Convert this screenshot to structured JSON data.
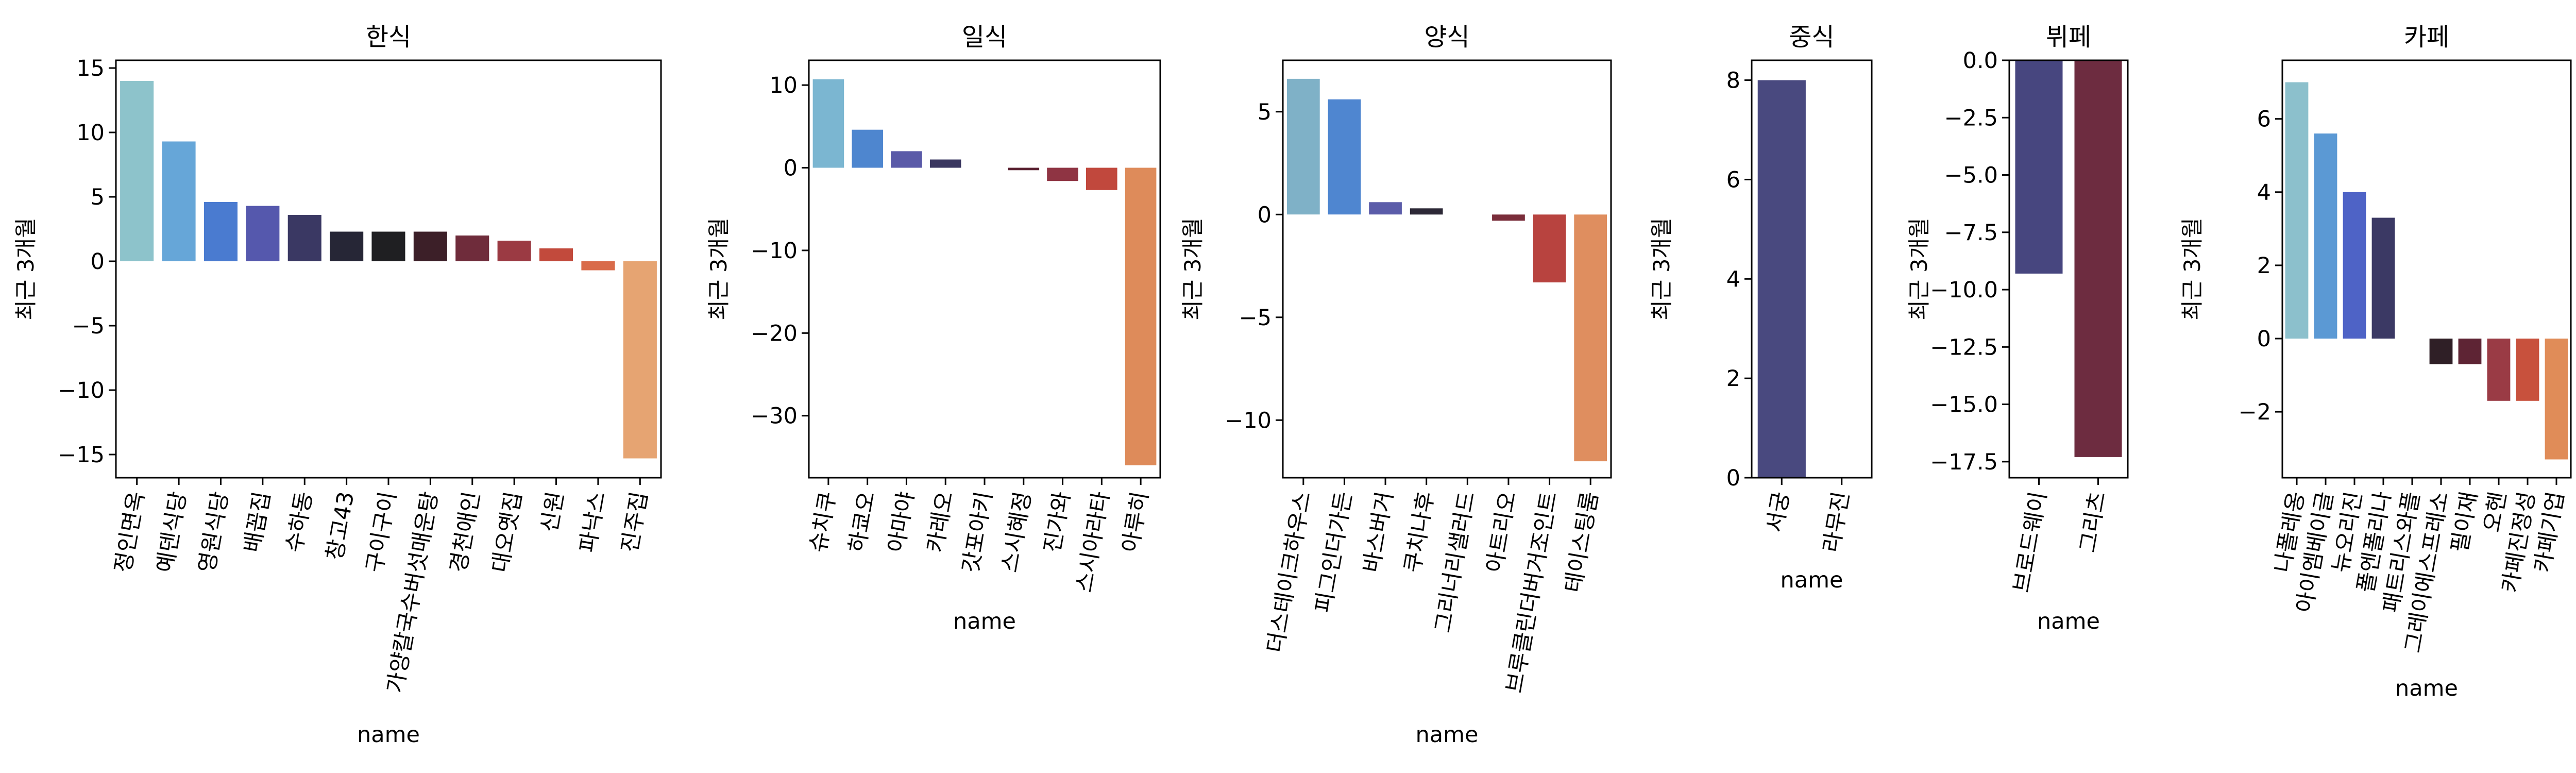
{
  "charts": [
    {
      "type": "bar",
      "title": "한식",
      "xlabel": "name",
      "ylabel": "최근 3개월",
      "ylim": [
        -16.8,
        15.6
      ],
      "yticks": [
        -15,
        -10,
        -5,
        0,
        5,
        10,
        15
      ],
      "categories": [
        "정인면옥",
        "예덴식당",
        "영원식당",
        "배꼽집",
        "수하동",
        "창고43",
        "구이구이",
        "가양칼국수버섯매운탕",
        "경천애인",
        "대오옛집",
        "신원",
        "파낙스",
        "진주집"
      ],
      "values": [
        14.0,
        9.3,
        4.6,
        4.3,
        3.6,
        2.3,
        2.3,
        2.3,
        2.0,
        1.6,
        1.0,
        -0.7,
        -15.3
      ],
      "colors": [
        "#8dc3cb",
        "#66a6d8",
        "#4a7bd0",
        "#5558ad",
        "#3a3863",
        "#262636",
        "#1f1f22",
        "#3c1f28",
        "#6f2c3b",
        "#9b3a43",
        "#c24a3c",
        "#d96b4a",
        "#e6a472"
      ]
    },
    {
      "type": "bar",
      "title": "일식",
      "xlabel": "name",
      "ylabel": "최근 3개월",
      "ylim": [
        -37.5,
        13.0
      ],
      "yticks": [
        -30,
        -20,
        -10,
        0,
        10
      ],
      "categories": [
        "슈치쿠",
        "하쿄오",
        "아마야",
        "카레오",
        "갓포아키",
        "스시혜정",
        "진가와",
        "스시아라타",
        "아루히"
      ],
      "values": [
        10.7,
        4.6,
        2.0,
        1.0,
        0.0,
        -0.3,
        -1.6,
        -2.7,
        -36.0
      ],
      "colors": [
        "#7bb6d1",
        "#4e86cf",
        "#5a5aa8",
        "#3a3760",
        "#241f2c",
        "#5a2232",
        "#8f3443",
        "#c1483d",
        "#de8b5a"
      ]
    },
    {
      "type": "bar",
      "title": "양식",
      "xlabel": "name",
      "ylabel": "최근 3개월",
      "ylim": [
        -12.8,
        7.5
      ],
      "yticks": [
        -10,
        -5,
        0,
        5
      ],
      "categories": [
        "더스테이크하우스",
        "피그인더가든",
        "바스버거",
        "쿠치나후",
        "그리너리샐러드",
        "아트리오",
        "브루클린더버거조인트",
        "테이스팅룸"
      ],
      "values": [
        6.6,
        5.6,
        0.6,
        0.3,
        0.0,
        -0.3,
        -3.3,
        -12.0
      ],
      "colors": [
        "#7fb1c7",
        "#4f86d0",
        "#5b5ca9",
        "#2c2836",
        "#36202a",
        "#7a2d3a",
        "#b8433f",
        "#df8e5f"
      ]
    },
    {
      "type": "bar",
      "title": "중식",
      "xlabel": "name",
      "ylabel": "최근 3개월",
      "ylim": [
        0,
        8.4
      ],
      "yticks": [
        0,
        2,
        4,
        6,
        8
      ],
      "categories": [
        "서궁",
        "라무진"
      ],
      "values": [
        8.0,
        0.0
      ],
      "colors": [
        "#49497f",
        "#6d2c40"
      ]
    },
    {
      "type": "bar",
      "title": "뷔페",
      "xlabel": "name",
      "ylabel": "최근 3개월",
      "ylim": [
        -18.2,
        0
      ],
      "yticks": [
        -17.5,
        -15.0,
        -12.5,
        -10.0,
        -7.5,
        -5.0,
        -2.5,
        0.0
      ],
      "ytick_labels": [
        "−17.5",
        "−15.0",
        "−12.5",
        "−10.0",
        "−7.5",
        "−5.0",
        "−2.5",
        "0.0"
      ],
      "categories": [
        "브로드웨이",
        "그리츠"
      ],
      "values": [
        -9.3,
        -17.3
      ],
      "colors": [
        "#47467f",
        "#6d2c40"
      ]
    },
    {
      "type": "bar",
      "title": "카페",
      "xlabel": "name",
      "ylabel": "최근 3개월",
      "ylim": [
        -3.8,
        7.6
      ],
      "yticks": [
        -2,
        0,
        2,
        4,
        6
      ],
      "categories": [
        "나폴레옹",
        "아이엠베이글",
        "뉴오리진",
        "폴엔폴리나",
        "패트리스와플",
        "그레이에스프레소",
        "필이재",
        "오헨",
        "카페진정성",
        "카페기업"
      ],
      "values": [
        7.0,
        5.6,
        4.0,
        3.3,
        0.0,
        -0.7,
        -0.7,
        -1.7,
        -1.7,
        -3.3
      ],
      "colors": [
        "#8cc0cc",
        "#5b99d4",
        "#4e63c6",
        "#3b3964",
        "#2a2a30",
        "#2f1f26",
        "#5e2434",
        "#9a3b45",
        "#c8513d",
        "#e08c58"
      ]
    }
  ]
}
